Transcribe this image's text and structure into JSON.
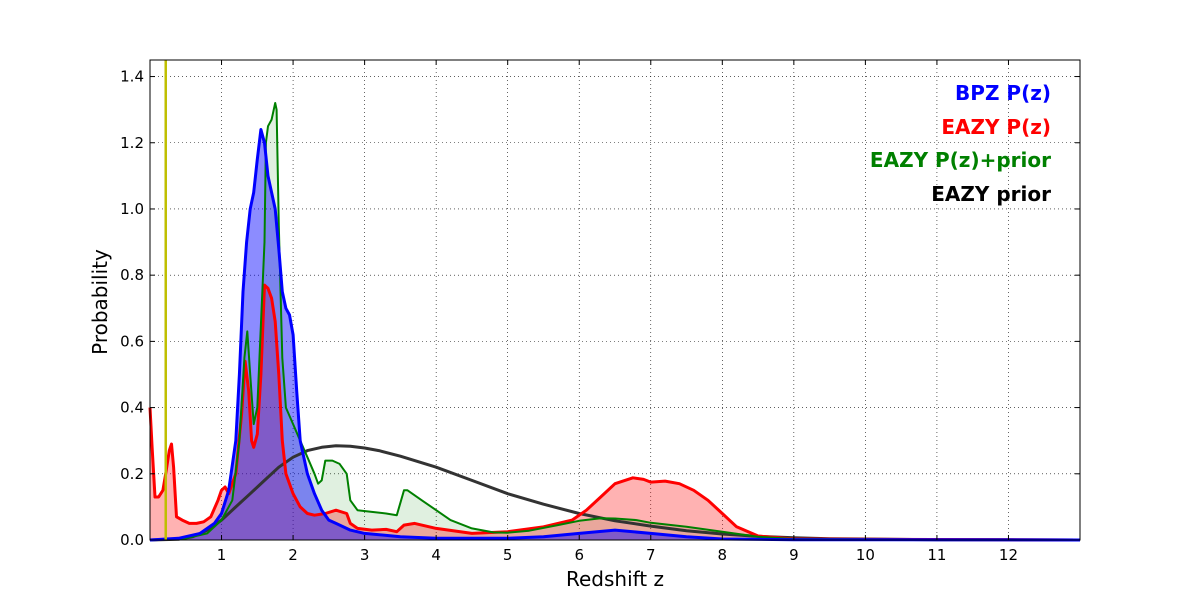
{
  "chart_data": {
    "type": "area",
    "xlabel": "Redshift z",
    "ylabel": "Probability",
    "xlim": [
      0,
      13
    ],
    "ylim": [
      0,
      1.45
    ],
    "x_ticks": [
      1,
      2,
      3,
      4,
      5,
      6,
      7,
      8,
      9,
      10,
      11,
      12
    ],
    "x_tick_labels": [
      "1",
      "2",
      "3",
      "4",
      "5",
      "6",
      "7",
      "8",
      "9",
      "10",
      "11",
      "12"
    ],
    "y_ticks": [
      0.0,
      0.2,
      0.4,
      0.6,
      0.8,
      1.0,
      1.2,
      1.4
    ],
    "y_tick_labels": [
      "0.0",
      "0.2",
      "0.4",
      "0.6",
      "0.8",
      "1.0",
      "1.2",
      "1.4"
    ],
    "grid": true,
    "legend_position": "top-right",
    "vertical_line": {
      "x": 0.22,
      "color": "#bfbf00"
    },
    "series": [
      {
        "name": "BPZ P(z)",
        "color": "#0000ff",
        "fill": "#0000ff",
        "filled": true,
        "points": [
          [
            0,
            0
          ],
          [
            0.4,
            0.005
          ],
          [
            0.7,
            0.02
          ],
          [
            0.9,
            0.05
          ],
          [
            1.0,
            0.08
          ],
          [
            1.1,
            0.15
          ],
          [
            1.2,
            0.3
          ],
          [
            1.25,
            0.5
          ],
          [
            1.3,
            0.75
          ],
          [
            1.35,
            0.9
          ],
          [
            1.4,
            1.0
          ],
          [
            1.45,
            1.05
          ],
          [
            1.5,
            1.15
          ],
          [
            1.55,
            1.24
          ],
          [
            1.6,
            1.2
          ],
          [
            1.65,
            1.1
          ],
          [
            1.7,
            1.05
          ],
          [
            1.75,
            1.0
          ],
          [
            1.8,
            0.88
          ],
          [
            1.85,
            0.75
          ],
          [
            1.9,
            0.7
          ],
          [
            1.95,
            0.68
          ],
          [
            2.0,
            0.62
          ],
          [
            2.05,
            0.45
          ],
          [
            2.1,
            0.3
          ],
          [
            2.2,
            0.2
          ],
          [
            2.3,
            0.14
          ],
          [
            2.4,
            0.09
          ],
          [
            2.5,
            0.06
          ],
          [
            2.6,
            0.05
          ],
          [
            2.8,
            0.03
          ],
          [
            3.0,
            0.02
          ],
          [
            3.5,
            0.01
          ],
          [
            4.0,
            0.005
          ],
          [
            5.0,
            0.005
          ],
          [
            5.5,
            0.01
          ],
          [
            6.0,
            0.02
          ],
          [
            6.5,
            0.03
          ],
          [
            7.0,
            0.02
          ],
          [
            7.5,
            0.01
          ],
          [
            8.0,
            0.003
          ],
          [
            9.0,
            0.001
          ],
          [
            13,
            0
          ]
        ]
      },
      {
        "name": "EAZY P(z)",
        "color": "#ff0000",
        "fill": "#ff0000",
        "filled": true,
        "points": [
          [
            0,
            0.4
          ],
          [
            0.03,
            0.28
          ],
          [
            0.07,
            0.13
          ],
          [
            0.12,
            0.13
          ],
          [
            0.18,
            0.15
          ],
          [
            0.22,
            0.2
          ],
          [
            0.27,
            0.27
          ],
          [
            0.3,
            0.29
          ],
          [
            0.33,
            0.22
          ],
          [
            0.37,
            0.07
          ],
          [
            0.45,
            0.06
          ],
          [
            0.55,
            0.05
          ],
          [
            0.65,
            0.05
          ],
          [
            0.75,
            0.055
          ],
          [
            0.85,
            0.07
          ],
          [
            0.95,
            0.12
          ],
          [
            1.0,
            0.15
          ],
          [
            1.05,
            0.16
          ],
          [
            1.1,
            0.14
          ],
          [
            1.2,
            0.2
          ],
          [
            1.28,
            0.38
          ],
          [
            1.33,
            0.54
          ],
          [
            1.38,
            0.45
          ],
          [
            1.42,
            0.3
          ],
          [
            1.45,
            0.28
          ],
          [
            1.5,
            0.32
          ],
          [
            1.55,
            0.5
          ],
          [
            1.6,
            0.77
          ],
          [
            1.65,
            0.76
          ],
          [
            1.7,
            0.73
          ],
          [
            1.75,
            0.66
          ],
          [
            1.8,
            0.5
          ],
          [
            1.85,
            0.3
          ],
          [
            1.9,
            0.2
          ],
          [
            2.0,
            0.14
          ],
          [
            2.1,
            0.1
          ],
          [
            2.2,
            0.08
          ],
          [
            2.3,
            0.075
          ],
          [
            2.45,
            0.08
          ],
          [
            2.6,
            0.09
          ],
          [
            2.75,
            0.08
          ],
          [
            2.8,
            0.05
          ],
          [
            2.9,
            0.035
          ],
          [
            3.1,
            0.03
          ],
          [
            3.3,
            0.032
          ],
          [
            3.45,
            0.025
          ],
          [
            3.55,
            0.045
          ],
          [
            3.7,
            0.05
          ],
          [
            4.0,
            0.035
          ],
          [
            4.5,
            0.02
          ],
          [
            5.0,
            0.025
          ],
          [
            5.5,
            0.04
          ],
          [
            5.9,
            0.06
          ],
          [
            6.1,
            0.09
          ],
          [
            6.3,
            0.13
          ],
          [
            6.5,
            0.17
          ],
          [
            6.75,
            0.188
          ],
          [
            6.9,
            0.183
          ],
          [
            7.0,
            0.175
          ],
          [
            7.2,
            0.178
          ],
          [
            7.4,
            0.17
          ],
          [
            7.6,
            0.15
          ],
          [
            7.8,
            0.12
          ],
          [
            8.0,
            0.08
          ],
          [
            8.2,
            0.04
          ],
          [
            8.5,
            0.012
          ],
          [
            9.0,
            0.003
          ],
          [
            13,
            0
          ]
        ]
      },
      {
        "name": "EAZY P(z)+prior",
        "color": "#008000",
        "fill": "#008000",
        "filled": true,
        "points": [
          [
            0,
            0
          ],
          [
            0.5,
            0.005
          ],
          [
            0.8,
            0.02
          ],
          [
            1.0,
            0.06
          ],
          [
            1.15,
            0.12
          ],
          [
            1.25,
            0.3
          ],
          [
            1.32,
            0.55
          ],
          [
            1.36,
            0.63
          ],
          [
            1.4,
            0.5
          ],
          [
            1.45,
            0.35
          ],
          [
            1.5,
            0.4
          ],
          [
            1.55,
            0.65
          ],
          [
            1.6,
            0.9
          ],
          [
            1.62,
            1.2
          ],
          [
            1.65,
            1.25
          ],
          [
            1.7,
            1.27
          ],
          [
            1.75,
            1.32
          ],
          [
            1.77,
            1.3
          ],
          [
            1.8,
            0.95
          ],
          [
            1.85,
            0.55
          ],
          [
            1.9,
            0.4
          ],
          [
            2.0,
            0.35
          ],
          [
            2.1,
            0.3
          ],
          [
            2.2,
            0.25
          ],
          [
            2.3,
            0.2
          ],
          [
            2.35,
            0.17
          ],
          [
            2.4,
            0.18
          ],
          [
            2.45,
            0.24
          ],
          [
            2.55,
            0.24
          ],
          [
            2.65,
            0.23
          ],
          [
            2.75,
            0.2
          ],
          [
            2.8,
            0.12
          ],
          [
            2.9,
            0.09
          ],
          [
            3.1,
            0.085
          ],
          [
            3.3,
            0.08
          ],
          [
            3.45,
            0.075
          ],
          [
            3.55,
            0.15
          ],
          [
            3.6,
            0.15
          ],
          [
            3.8,
            0.12
          ],
          [
            4.0,
            0.09
          ],
          [
            4.2,
            0.06
          ],
          [
            4.5,
            0.035
          ],
          [
            4.8,
            0.023
          ],
          [
            5.0,
            0.022
          ],
          [
            5.3,
            0.028
          ],
          [
            5.7,
            0.045
          ],
          [
            6.0,
            0.058
          ],
          [
            6.3,
            0.066
          ],
          [
            6.5,
            0.065
          ],
          [
            6.8,
            0.06
          ],
          [
            7.0,
            0.052
          ],
          [
            7.5,
            0.04
          ],
          [
            8.0,
            0.025
          ],
          [
            8.5,
            0.01
          ],
          [
            9.0,
            0.003
          ],
          [
            13,
            0
          ]
        ]
      },
      {
        "name": "EAZY prior",
        "color": "#333333",
        "fill": "none",
        "filled": false,
        "points": [
          [
            0,
            0
          ],
          [
            0.4,
            0.002
          ],
          [
            0.6,
            0.01
          ],
          [
            0.8,
            0.03
          ],
          [
            1.0,
            0.06
          ],
          [
            1.2,
            0.1
          ],
          [
            1.4,
            0.14
          ],
          [
            1.6,
            0.18
          ],
          [
            1.8,
            0.22
          ],
          [
            2.0,
            0.25
          ],
          [
            2.2,
            0.27
          ],
          [
            2.4,
            0.28
          ],
          [
            2.6,
            0.285
          ],
          [
            2.8,
            0.283
          ],
          [
            3.0,
            0.278
          ],
          [
            3.2,
            0.27
          ],
          [
            3.5,
            0.253
          ],
          [
            4.0,
            0.22
          ],
          [
            4.5,
            0.18
          ],
          [
            5.0,
            0.14
          ],
          [
            5.5,
            0.108
          ],
          [
            6.0,
            0.08
          ],
          [
            6.5,
            0.058
          ],
          [
            7.0,
            0.042
          ],
          [
            7.5,
            0.028
          ],
          [
            8.0,
            0.018
          ],
          [
            8.5,
            0.011
          ],
          [
            9.0,
            0.007
          ],
          [
            9.5,
            0.004
          ],
          [
            10.0,
            0.003
          ],
          [
            11.0,
            0.001
          ],
          [
            12.0,
            0.0005
          ],
          [
            13,
            0
          ]
        ]
      }
    ]
  }
}
